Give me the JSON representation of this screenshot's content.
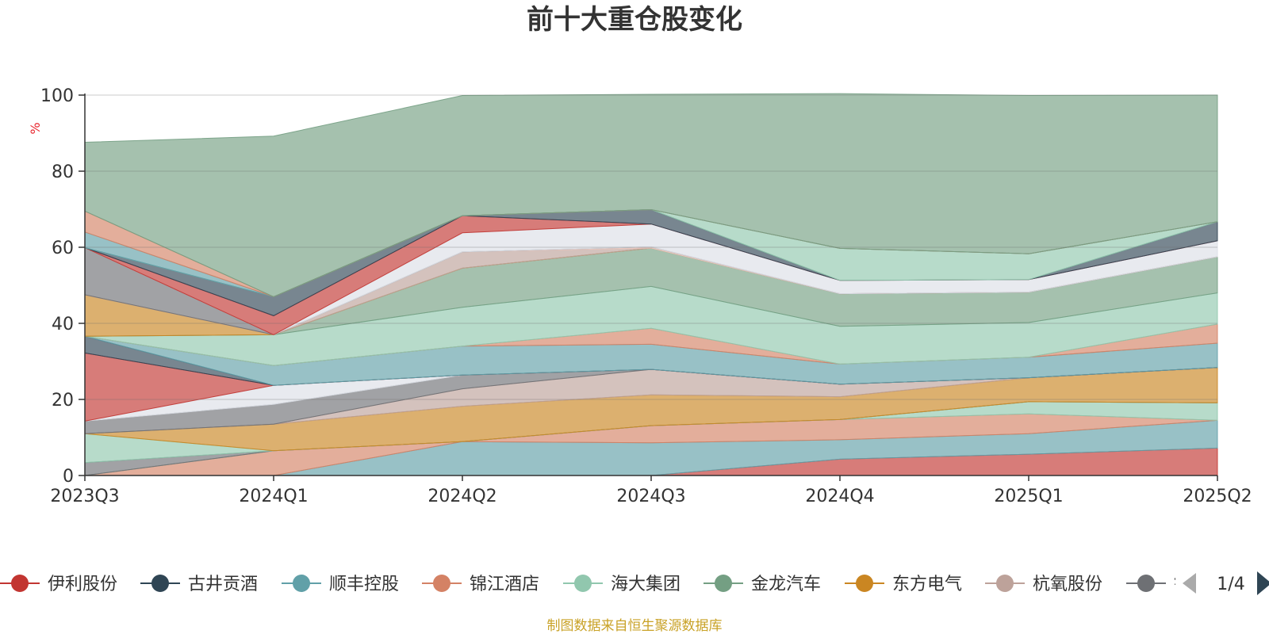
{
  "chart_data": {
    "type": "area",
    "title": "前十大重仓股变化",
    "ylabel": "%",
    "ylim": [
      0,
      100
    ],
    "yticks": [
      "0",
      "20",
      "40",
      "60",
      "80",
      "100"
    ],
    "categories": [
      "2023Q3",
      "2024Q1",
      "2024Q2",
      "2024Q3",
      "2024Q4",
      "2025Q1",
      "2025Q2"
    ],
    "grid": true,
    "legend": {
      "placement": "bottom",
      "page": "1/4",
      "items": [
        {
          "name": "伊利股份",
          "color": "#c23531"
        },
        {
          "name": "古井贡酒",
          "color": "#2f4554"
        },
        {
          "name": "顺丰控股",
          "color": "#61a0a8"
        },
        {
          "name": "锦江酒店",
          "color": "#d48265"
        },
        {
          "name": "海大集团",
          "color": "#91c7ae"
        },
        {
          "name": "金龙汽车",
          "color": "#749f83"
        },
        {
          "name": "东方电气",
          "color": "#ca8622"
        },
        {
          "name": "杭氧股份",
          "color": "#bda29a"
        },
        {
          "name": "锦",
          "color": "#6e7074"
        }
      ]
    },
    "bands": [
      {
        "color": "#c23531",
        "values": [
          0,
          0,
          0,
          0,
          4.3,
          5.6,
          7.2
        ]
      },
      {
        "color": "#61a0a8",
        "values": [
          0,
          0,
          8.9,
          8.6,
          5.1,
          5.4,
          7.3
        ]
      },
      {
        "color": "#d48265",
        "values": [
          0,
          6.5,
          0,
          4.5,
          5.3,
          5.2,
          0
        ]
      },
      {
        "color": "#91c7ae",
        "values": [
          0,
          0,
          0,
          0,
          0,
          3.2,
          4.6
        ]
      },
      {
        "color": "#6e7074",
        "values": [
          3.4,
          0,
          0,
          0,
          0,
          0,
          0
        ]
      },
      {
        "color": "#91c7ae",
        "values": [
          7.6,
          0,
          0,
          0,
          0,
          0,
          0
        ]
      },
      {
        "color": "#ca8622",
        "values": [
          0,
          7.0,
          9.3,
          8.1,
          6.0,
          6.3,
          9.3
        ]
      },
      {
        "color": "#bda29a",
        "values": [
          0,
          0,
          4.6,
          6.7,
          3.3,
          0,
          0
        ]
      },
      {
        "color": "#6e7074",
        "values": [
          3.3,
          5.2,
          3.6,
          0,
          0,
          0,
          0
        ]
      },
      {
        "color": "#dcdfe6",
        "values": [
          0,
          5.0,
          0,
          0,
          0,
          0,
          0
        ]
      },
      {
        "color": "#c23531",
        "values": [
          17.9,
          0,
          0,
          0,
          0,
          0,
          0
        ]
      },
      {
        "color": "#2f4554",
        "values": [
          4.4,
          0,
          0,
          0,
          0,
          0,
          0
        ]
      },
      {
        "color": "#61a0a8",
        "values": [
          0,
          5.2,
          7.6,
          6.6,
          5.3,
          5.4,
          6.4
        ]
      },
      {
        "color": "#d48265",
        "values": [
          0,
          0,
          0,
          4.2,
          0,
          0,
          5.0
        ]
      },
      {
        "color": "#91c7ae",
        "values": [
          0,
          8.1,
          10.2,
          11.0,
          9.9,
          9.1,
          8.2
        ]
      },
      {
        "color": "#749f83",
        "values": [
          0,
          0,
          10.3,
          10.1,
          8.6,
          8.0,
          9.5
        ]
      },
      {
        "color": "#ca8622",
        "values": [
          10.9,
          0,
          0,
          0,
          0,
          0,
          0
        ]
      },
      {
        "color": "#bda29a",
        "values": [
          0,
          0,
          4.3,
          0,
          0,
          0,
          0
        ]
      },
      {
        "color": "#ecc9c0",
        "values": [
          0,
          0,
          0,
          0.3,
          0,
          0,
          0
        ]
      },
      {
        "color": "#6e7074",
        "values": [
          12.4,
          0,
          0,
          0,
          0,
          0,
          0
        ]
      },
      {
        "color": "#dcdfe6",
        "values": [
          0,
          0,
          5.0,
          6.0,
          3.5,
          3.3,
          4.2
        ]
      },
      {
        "color": "#c23531",
        "values": [
          0,
          5.0,
          4.5,
          0,
          0,
          0,
          0
        ]
      },
      {
        "color": "#2f4554",
        "values": [
          0,
          5.0,
          0,
          3.8,
          0,
          0,
          5.0
        ]
      },
      {
        "color": "#91c7ae",
        "values": [
          0,
          0,
          0,
          0,
          8.4,
          6.8,
          0
        ]
      },
      {
        "color": "#61a0a8",
        "values": [
          4.1,
          0,
          0,
          0,
          0,
          0,
          0
        ]
      },
      {
        "color": "#d48265",
        "values": [
          5.5,
          0,
          0,
          0,
          0,
          0,
          0
        ]
      },
      {
        "color": "#749f83",
        "values": [
          18.1,
          42.2,
          31.6,
          30.3,
          40.7,
          41.6,
          33.3
        ]
      }
    ],
    "source_note": "制图数据来自恒生聚源数据库"
  }
}
